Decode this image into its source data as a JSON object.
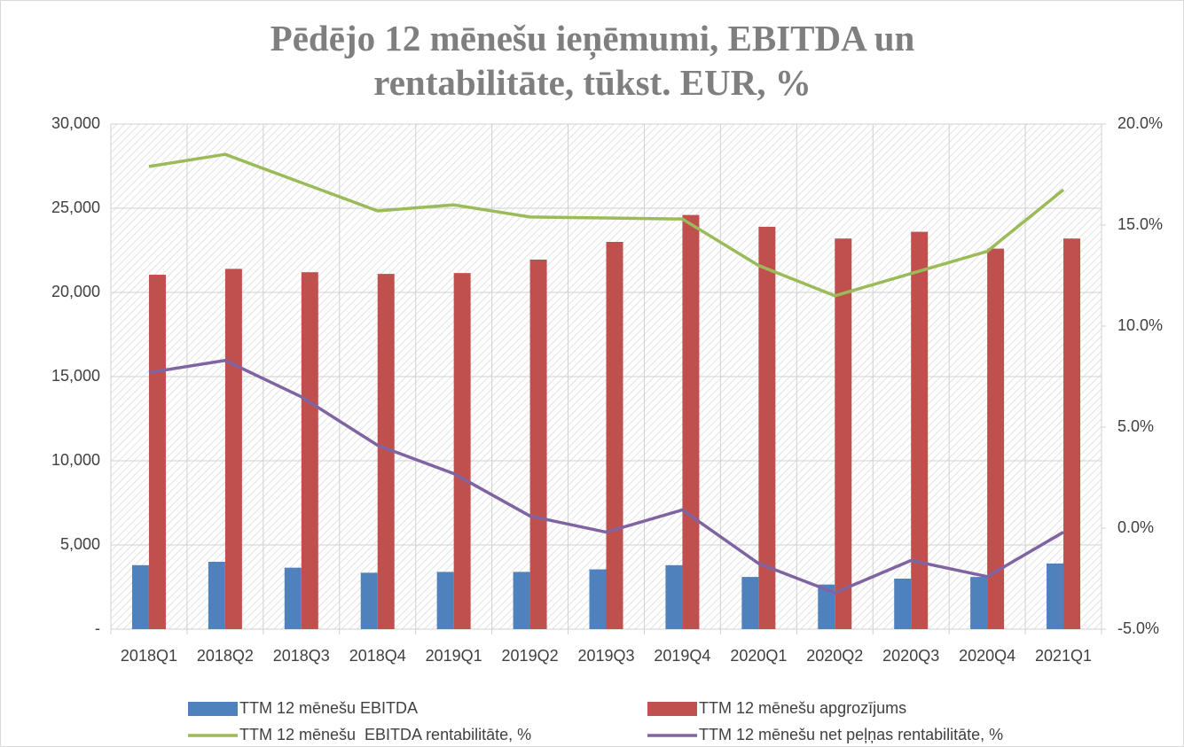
{
  "chart_data": {
    "type": "bar",
    "title": "Pēdējo 12 mēnešu ieņēmumi, EBITDA un rentabilitāte, tūkst. EUR, %",
    "categories": [
      "2018Q1",
      "2018Q2",
      "2018Q3",
      "2018Q4",
      "2019Q1",
      "2019Q2",
      "2019Q3",
      "2019Q4",
      "2020Q1",
      "2020Q2",
      "2020Q3",
      "2020Q4",
      "2021Q1"
    ],
    "series": [
      {
        "name": "TTM 12 mēnešu EBITDA",
        "type": "bar",
        "color": "#4f81bd",
        "values": [
          3800,
          4000,
          3650,
          3350,
          3400,
          3400,
          3550,
          3800,
          3100,
          2650,
          3000,
          3100,
          3900
        ]
      },
      {
        "name": "TTM 12 mēnešu apgrozījums",
        "type": "bar",
        "color": "#c0504d",
        "values": [
          21050,
          21400,
          21200,
          21100,
          21150,
          21950,
          23000,
          24600,
          23900,
          23200,
          23600,
          22600,
          23200
        ]
      },
      {
        "name": "TTM 12 mēnešu  EBITDA rentabilitāte, %",
        "type": "line",
        "axis": "y2",
        "color": "#9bbb59",
        "values": [
          17.9,
          18.5,
          17.1,
          15.7,
          16.0,
          15.4,
          15.35,
          15.3,
          13.0,
          11.5,
          12.6,
          13.7,
          16.75
        ]
      },
      {
        "name": "TTM 12 mēnešu net peļņas rentabilitāte, %",
        "type": "line",
        "axis": "y2",
        "color": "#8064a2",
        "values": [
          7.7,
          8.3,
          6.5,
          4.1,
          2.7,
          0.6,
          -0.2,
          0.9,
          -1.75,
          -3.2,
          -1.6,
          -2.4,
          -0.2
        ]
      }
    ],
    "ylim": [
      0,
      30000
    ],
    "yticks": [
      {
        "value": 0,
        "label": "-"
      },
      {
        "value": 5000,
        "label": "5,000"
      },
      {
        "value": 10000,
        "label": "10,000"
      },
      {
        "value": 15000,
        "label": "15,000"
      },
      {
        "value": 20000,
        "label": "20,000"
      },
      {
        "value": 25000,
        "label": "25,000"
      },
      {
        "value": 30000,
        "label": "30,000"
      }
    ],
    "y2lim": [
      -5,
      20
    ],
    "y2ticks": [
      {
        "value": -5,
        "label": "-5.0%"
      },
      {
        "value": 0,
        "label": "0.0%"
      },
      {
        "value": 5,
        "label": "5.0%"
      },
      {
        "value": 10,
        "label": "10.0%"
      },
      {
        "value": 15,
        "label": "15.0%"
      },
      {
        "value": 20,
        "label": "20.0%"
      }
    ],
    "grid": true
  }
}
